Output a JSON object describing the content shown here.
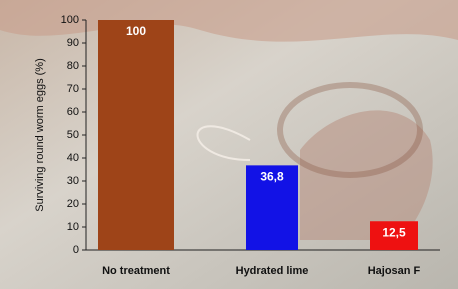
{
  "chart_data": {
    "type": "bar",
    "y_label": "Surviving round worm eggs (%)",
    "categories": [
      "No treatment",
      "Hydrated lime",
      "Hajosan F"
    ],
    "values": [
      100,
      36.8,
      12.5
    ],
    "value_labels": [
      "100",
      "36,8",
      "12,5"
    ],
    "colors": [
      "#9e4418",
      "#1212e6",
      "#ee1111"
    ],
    "ylim": [
      0,
      100
    ],
    "yticks": [
      0,
      10,
      20,
      30,
      40,
      50,
      60,
      70,
      80,
      90,
      100
    ]
  }
}
